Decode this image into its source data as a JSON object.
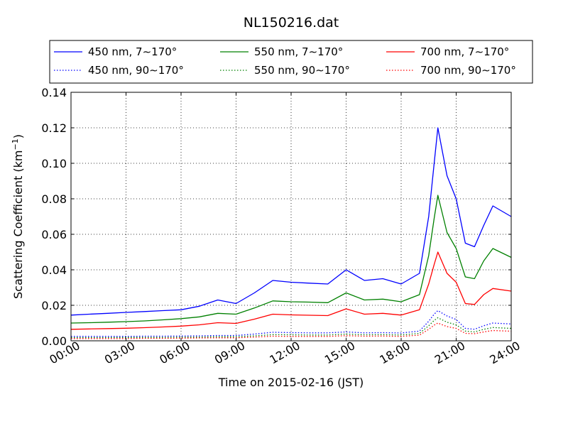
{
  "chart_data": {
    "type": "line",
    "title": "NL150216.dat",
    "xlabel": "Time on 2015-02-16 (JST)",
    "ylabel": "Scattering Coefficient (km",
    "ylabel_sup": "−1",
    "ylabel_end": ")",
    "x_ticks": [
      "00:00",
      "03:00",
      "06:00",
      "09:00",
      "12:00",
      "15:00",
      "18:00",
      "21:00",
      "24:00"
    ],
    "x_tick_hours": [
      0,
      3,
      6,
      9,
      12,
      15,
      18,
      21,
      24
    ],
    "xlim_hours": [
      0,
      24
    ],
    "y_ticks": [
      "0.00",
      "0.02",
      "0.04",
      "0.06",
      "0.08",
      "0.10",
      "0.12",
      "0.14"
    ],
    "y_tick_values": [
      0,
      0.02,
      0.04,
      0.06,
      0.08,
      0.1,
      0.12,
      0.14
    ],
    "ylim": [
      0,
      0.14
    ],
    "grid": true,
    "legend_position": "top, above plot",
    "x_hours": [
      0,
      1,
      2,
      3,
      4,
      5,
      6,
      7,
      8,
      9,
      10,
      11,
      12,
      13,
      14,
      15,
      16,
      17,
      18,
      19,
      19.5,
      19.8,
      20,
      20.5,
      21,
      21.5,
      22,
      22.5,
      23,
      24
    ],
    "series": [
      {
        "name": "450 nm, 7∼170°",
        "color": "#0000ff",
        "style": "solid",
        "values": [
          0.0145,
          0.015,
          0.0155,
          0.016,
          0.0165,
          0.017,
          0.0175,
          0.0195,
          0.023,
          0.021,
          0.027,
          0.034,
          0.033,
          0.0325,
          0.032,
          0.04,
          0.034,
          0.035,
          0.032,
          0.038,
          0.07,
          0.1,
          0.12,
          0.093,
          0.08,
          0.055,
          0.053,
          0.065,
          0.076,
          0.07
        ]
      },
      {
        "name": "450 nm, 90∼170°",
        "color": "#0000ff",
        "style": "dotted",
        "values": [
          0.0025,
          0.0025,
          0.0025,
          0.0025,
          0.0026,
          0.0026,
          0.0027,
          0.0028,
          0.003,
          0.003,
          0.0038,
          0.0048,
          0.0046,
          0.0045,
          0.0045,
          0.005,
          0.0045,
          0.0046,
          0.0044,
          0.0055,
          0.011,
          0.015,
          0.017,
          0.014,
          0.012,
          0.007,
          0.0065,
          0.0085,
          0.01,
          0.0095
        ]
      },
      {
        "name": "550 nm, 7∼170°",
        "color": "#008000",
        "style": "solid",
        "values": [
          0.01,
          0.0102,
          0.0105,
          0.0108,
          0.0112,
          0.0118,
          0.0125,
          0.0135,
          0.0155,
          0.015,
          0.0185,
          0.0225,
          0.022,
          0.0218,
          0.0215,
          0.027,
          0.023,
          0.0235,
          0.022,
          0.026,
          0.048,
          0.069,
          0.082,
          0.061,
          0.052,
          0.036,
          0.035,
          0.045,
          0.052,
          0.047
        ]
      },
      {
        "name": "550 nm, 90∼170°",
        "color": "#008000",
        "style": "dotted",
        "values": [
          0.0018,
          0.0018,
          0.0018,
          0.0019,
          0.0019,
          0.0019,
          0.002,
          0.0021,
          0.0023,
          0.0023,
          0.0028,
          0.0035,
          0.0034,
          0.0033,
          0.0033,
          0.0038,
          0.0034,
          0.0035,
          0.0033,
          0.0042,
          0.0085,
          0.0115,
          0.013,
          0.0105,
          0.009,
          0.0055,
          0.005,
          0.0065,
          0.0075,
          0.007
        ]
      },
      {
        "name": "700 nm, 7∼170°",
        "color": "#ff0000",
        "style": "solid",
        "values": [
          0.0065,
          0.0067,
          0.0069,
          0.0071,
          0.0074,
          0.0078,
          0.0083,
          0.009,
          0.0102,
          0.0098,
          0.0122,
          0.015,
          0.0146,
          0.0144,
          0.0142,
          0.018,
          0.015,
          0.0155,
          0.0145,
          0.0175,
          0.032,
          0.043,
          0.05,
          0.038,
          0.033,
          0.021,
          0.0205,
          0.026,
          0.0295,
          0.028
        ]
      },
      {
        "name": "700 nm, 90∼170°",
        "color": "#ff0000",
        "style": "dotted",
        "values": [
          0.0013,
          0.0013,
          0.0013,
          0.0013,
          0.0014,
          0.0014,
          0.0015,
          0.0016,
          0.0017,
          0.0017,
          0.0021,
          0.0026,
          0.0025,
          0.0025,
          0.0025,
          0.0029,
          0.0026,
          0.0027,
          0.0025,
          0.0032,
          0.0065,
          0.0088,
          0.01,
          0.008,
          0.007,
          0.0042,
          0.004,
          0.005,
          0.0058,
          0.0054
        ]
      }
    ]
  }
}
